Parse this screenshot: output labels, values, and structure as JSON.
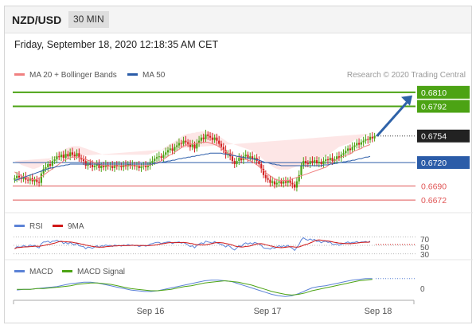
{
  "header": {
    "pair": "NZD/USD",
    "timeframe": "30 MIN"
  },
  "datetime": "Friday, September 18, 2020 12:18:35 AM CET",
  "legend": {
    "ma20": "MA 20 + Bollinger Bands",
    "ma50": "MA 50",
    "copyright": "Research © 2020 Trading Central"
  },
  "colors": {
    "ma20": "#f08080",
    "ma50": "#2b5ca8",
    "green": "#4ca314",
    "red": "#e05555",
    "bollinger": "#fde0e0",
    "bull": "#4ca314",
    "bear": "#d22020",
    "arrow": "#2e62a8",
    "rsi": "#5b82d6",
    "rsi_ma": "#d01818",
    "macd": "#5b82d6",
    "signal": "#4ca314"
  },
  "chart_data": [
    {
      "type": "candlestick",
      "title": "NZD/USD",
      "timeframe": "30 MIN",
      "x_labels": [
        "Sep 16",
        "Sep 17",
        "Sep 18"
      ],
      "ylim": [
        0.6665,
        0.6818
      ],
      "levels": [
        {
          "value": 0.681,
          "label": "0.6810",
          "kind": "resistance"
        },
        {
          "value": 0.6792,
          "label": "0.6792",
          "kind": "resistance"
        },
        {
          "value": 0.672,
          "label": "0.6720",
          "kind": "pivot"
        },
        {
          "value": 0.669,
          "label": "0.6690",
          "kind": "support"
        },
        {
          "value": 0.6672,
          "label": "0.6672",
          "kind": "support"
        }
      ],
      "last_price": {
        "value": 0.6754,
        "label": "0.6754"
      },
      "arrow": {
        "from": 0.6754,
        "to": 0.6806
      },
      "close": [
        0.67,
        0.6703,
        0.6701,
        0.6699,
        0.6702,
        0.6698,
        0.6697,
        0.67,
        0.6696,
        0.6698,
        0.6695,
        0.6694,
        0.6706,
        0.6712,
        0.6714,
        0.6718,
        0.6716,
        0.6722,
        0.6724,
        0.6728,
        0.6727,
        0.673,
        0.6726,
        0.6731,
        0.6728,
        0.6733,
        0.673,
        0.6728,
        0.6732,
        0.6726,
        0.6724,
        0.6722,
        0.6716,
        0.6719,
        0.6717,
        0.6714,
        0.6716,
        0.6718,
        0.6713,
        0.6716,
        0.6714,
        0.6717,
        0.6715,
        0.6716,
        0.6713,
        0.6717,
        0.6715,
        0.6716,
        0.6714,
        0.6717,
        0.6715,
        0.6718,
        0.6716,
        0.6717,
        0.6715,
        0.6716,
        0.6713,
        0.6715,
        0.6716,
        0.6714,
        0.6716,
        0.672,
        0.6722,
        0.6725,
        0.6727,
        0.6728,
        0.6726,
        0.673,
        0.6733,
        0.6736,
        0.6738,
        0.6735,
        0.674,
        0.6742,
        0.6745,
        0.6744,
        0.6748,
        0.6746,
        0.6744,
        0.674,
        0.6743,
        0.6738,
        0.6745,
        0.6748,
        0.6752,
        0.675,
        0.6756,
        0.6754,
        0.6752,
        0.6749,
        0.6752,
        0.6748,
        0.6744,
        0.674,
        0.6736,
        0.673,
        0.6732,
        0.6728,
        0.6722,
        0.6718,
        0.6722,
        0.6726,
        0.6723,
        0.6728,
        0.673,
        0.6726,
        0.6728,
        0.6724,
        0.6726,
        0.6722,
        0.6718,
        0.6712,
        0.6704,
        0.67,
        0.6698,
        0.6694,
        0.6696,
        0.6692,
        0.6694,
        0.6696,
        0.6693,
        0.6696,
        0.6694,
        0.6697,
        0.6694,
        0.6692,
        0.6688,
        0.6696,
        0.6704,
        0.6716,
        0.6722,
        0.6719,
        0.6718,
        0.6722,
        0.672,
        0.6723,
        0.6719,
        0.6721,
        0.6718,
        0.6722,
        0.6724,
        0.6723,
        0.6726,
        0.6722,
        0.6724,
        0.6728,
        0.6726,
        0.673,
        0.6732,
        0.6735,
        0.6738,
        0.6736,
        0.674,
        0.6742,
        0.6745,
        0.6743,
        0.6746,
        0.6748,
        0.675,
        0.6749,
        0.6753,
        0.6751,
        0.6754
      ],
      "ma20": [
        0.6708,
        0.6706,
        0.6705,
        0.6703,
        0.6702,
        0.6701,
        0.67,
        0.6699,
        0.6698,
        0.6698,
        0.6699,
        0.67,
        0.6702,
        0.6704,
        0.6706,
        0.6708,
        0.671,
        0.6712,
        0.6714,
        0.6716,
        0.6718,
        0.672,
        0.6722,
        0.6724,
        0.6725,
        0.6726,
        0.6727,
        0.6727,
        0.6727,
        0.6727,
        0.6726,
        0.6725,
        0.6724,
        0.6723,
        0.6722,
        0.6721,
        0.672,
        0.6719,
        0.6718,
        0.6717,
        0.6716,
        0.6716,
        0.6716,
        0.6716,
        0.6716,
        0.6716,
        0.6716,
        0.6716,
        0.6716,
        0.6716,
        0.6716,
        0.6716,
        0.6716,
        0.6716,
        0.6716,
        0.6716,
        0.6716,
        0.6716,
        0.6716,
        0.6716,
        0.6716,
        0.6717,
        0.6718,
        0.6719,
        0.672,
        0.6721,
        0.6722,
        0.6724,
        0.6726,
        0.6728,
        0.673,
        0.6731,
        0.6733,
        0.6735,
        0.6737,
        0.6739,
        0.6741,
        0.6742,
        0.6743,
        0.6743,
        0.6744,
        0.6744,
        0.6745,
        0.6745,
        0.6746,
        0.6746,
        0.6746,
        0.6746,
        0.6745,
        0.6744,
        0.6743,
        0.6742,
        0.674,
        0.6738,
        0.6736,
        0.6734,
        0.6732,
        0.6731,
        0.673,
        0.6729,
        0.6728,
        0.6727,
        0.6726,
        0.6725,
        0.6724,
        0.6723,
        0.6722,
        0.6721,
        0.6719,
        0.6717,
        0.6715,
        0.6712,
        0.671,
        0.6707,
        0.6705,
        0.6703,
        0.6701,
        0.6699,
        0.6698,
        0.6697,
        0.6697,
        0.6697,
        0.6697,
        0.6697,
        0.6698,
        0.6699,
        0.67,
        0.6701,
        0.6702,
        0.6703,
        0.6704,
        0.6705,
        0.6706,
        0.6707,
        0.6708,
        0.6709,
        0.671,
        0.6711,
        0.6712,
        0.6713,
        0.6714,
        0.6716,
        0.6718,
        0.672,
        0.6722,
        0.6724,
        0.6726,
        0.6727,
        0.6728,
        0.6729,
        0.673,
        0.6731,
        0.6733,
        0.6735,
        0.6736,
        0.6737,
        0.6738,
        0.674,
        0.6741,
        0.6742,
        0.6743
      ],
      "ma50": [
        0.6697,
        0.6698,
        0.6699,
        0.67,
        0.6701,
        0.6702,
        0.6703,
        0.6704,
        0.6705,
        0.6706,
        0.6707,
        0.6708,
        0.6709,
        0.671,
        0.6711,
        0.6712,
        0.6713,
        0.6713,
        0.6714,
        0.6715,
        0.6715,
        0.6716,
        0.6716,
        0.6717,
        0.6717,
        0.6718,
        0.6718,
        0.6718,
        0.6718,
        0.6718,
        0.6718,
        0.6718,
        0.6718,
        0.6718,
        0.6718,
        0.6718,
        0.6718,
        0.6718,
        0.6718,
        0.6718,
        0.6718,
        0.6718,
        0.6718,
        0.6718,
        0.6718,
        0.6718,
        0.6718,
        0.6718,
        0.6718,
        0.6718,
        0.6718,
        0.6718,
        0.6718,
        0.6718,
        0.6718,
        0.6718,
        0.6718,
        0.6718,
        0.6718,
        0.6718,
        0.6718,
        0.6718,
        0.6718,
        0.6719,
        0.6719,
        0.672,
        0.672,
        0.6721,
        0.6721,
        0.6722,
        0.6722,
        0.6723,
        0.6723,
        0.6724,
        0.6725,
        0.6725,
        0.6726,
        0.6726,
        0.6727,
        0.6727,
        0.6728,
        0.6728,
        0.6729,
        0.6729,
        0.673,
        0.673,
        0.6731,
        0.6731,
        0.6732,
        0.6732,
        0.6732,
        0.6732,
        0.6732,
        0.6732,
        0.6731,
        0.6731,
        0.673,
        0.673,
        0.6729,
        0.6729,
        0.6728,
        0.6728,
        0.6727,
        0.6727,
        0.6726,
        0.6726,
        0.6725,
        0.6725,
        0.6724,
        0.6724,
        0.6723,
        0.6722,
        0.6721,
        0.672,
        0.672,
        0.6719,
        0.6718,
        0.6718,
        0.6717,
        0.6717,
        0.6716,
        0.6716,
        0.6716,
        0.6716,
        0.6716,
        0.6716,
        0.6716,
        0.6716,
        0.6716,
        0.6716,
        0.6716,
        0.6716,
        0.6716,
        0.6716,
        0.6716,
        0.6716,
        0.6716,
        0.6716,
        0.6716,
        0.6717,
        0.6717,
        0.6717,
        0.6718,
        0.6718,
        0.6719,
        0.6719,
        0.672,
        0.672,
        0.6721,
        0.6721,
        0.6722,
        0.6722,
        0.6723,
        0.6723,
        0.6724,
        0.6725,
        0.6725,
        0.6726,
        0.6727,
        0.6727,
        0.6728
      ]
    },
    {
      "type": "line",
      "title": "RSI",
      "series": [
        {
          "name": "RSI"
        },
        {
          "name": "9MA"
        }
      ],
      "levels": [
        70,
        50,
        30
      ],
      "ylim": [
        20,
        80
      ]
    },
    {
      "type": "line",
      "title": "MACD",
      "series": [
        {
          "name": "MACD"
        },
        {
          "name": "MACD Signal"
        }
      ],
      "levels": [
        0
      ],
      "macd": [
        -0.3,
        -0.2,
        -0.2,
        -0.1,
        0.0,
        0.1,
        0.2,
        0.4,
        0.6,
        0.7,
        0.8,
        0.8,
        0.7,
        0.5,
        0.3,
        0.1,
        -0.1,
        -0.3,
        -0.4,
        -0.5,
        -0.5,
        -0.4,
        -0.2,
        0.0,
        0.2,
        0.4,
        0.6,
        0.8,
        1.0,
        1.1,
        1.1,
        1.0,
        0.9,
        0.6,
        0.3,
        0.0,
        -0.3,
        -0.6,
        -0.9,
        -1.1,
        -1.2,
        -1.1,
        -0.8,
        -0.4,
        0.0,
        0.2,
        0.3,
        0.5,
        0.7,
        0.9,
        1.1,
        1.2,
        1.3,
        1.3
      ],
      "signal": [
        -0.2,
        -0.2,
        -0.2,
        -0.1,
        -0.1,
        0.0,
        0.1,
        0.2,
        0.3,
        0.5,
        0.6,
        0.7,
        0.7,
        0.6,
        0.5,
        0.3,
        0.1,
        -0.1,
        -0.2,
        -0.3,
        -0.4,
        -0.4,
        -0.3,
        -0.2,
        0.0,
        0.2,
        0.3,
        0.5,
        0.7,
        0.8,
        0.9,
        1.0,
        0.9,
        0.8,
        0.6,
        0.4,
        0.1,
        -0.2,
        -0.5,
        -0.7,
        -0.9,
        -1.0,
        -0.9,
        -0.7,
        -0.4,
        -0.2,
        0.0,
        0.2,
        0.4,
        0.6,
        0.8,
        1.0,
        1.1,
        1.2
      ]
    }
  ],
  "rsi_labels": [
    "70",
    "50",
    "30"
  ],
  "macd_zero_label": "0"
}
